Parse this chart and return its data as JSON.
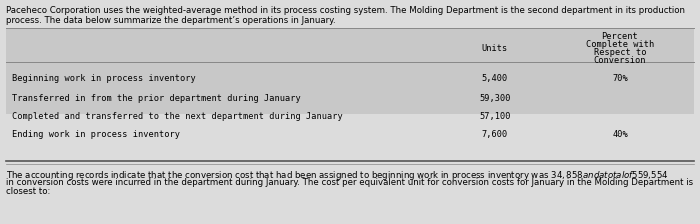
{
  "intro_text_line1": "Paceheco Corporation uses the weighted-average method in its process costing system. The Molding Department is the second department in its production",
  "intro_text_line2": "process. The data below summarize the department’s operations in January.",
  "header_col1": "Units",
  "header_col2_line1": "Percent",
  "header_col2_line2": "Complete with",
  "header_col2_line3": "Respect to",
  "header_col2_line4": "Conversion",
  "rows": [
    {
      "label": "Beginning work in process inventory",
      "units": "5,400",
      "conversion": "70%"
    },
    {
      "label": "Transferred in from the prior department during January",
      "units": "59,300",
      "conversion": ""
    },
    {
      "label": "Completed and transferred to the next department during January",
      "units": "57,100",
      "conversion": ""
    },
    {
      "label": "Ending work in process inventory",
      "units": "7,600",
      "conversion": "40%"
    }
  ],
  "footer_line1": "The accounting records indicate that the conversion cost that had been assigned to beginning work in process inventory was $34,858 and a total of $559,554",
  "footer_line2": "in conversion costs were incurred in the department during January. The cost per equivalent unit for conversion costs for January in the Molding Department is",
  "footer_line3": "closest to:",
  "page_bg": "#dcdcdc",
  "table_bg": "#c8c8c8",
  "font_size": 6.2,
  "monospace_font": "DejaVu Sans Mono"
}
